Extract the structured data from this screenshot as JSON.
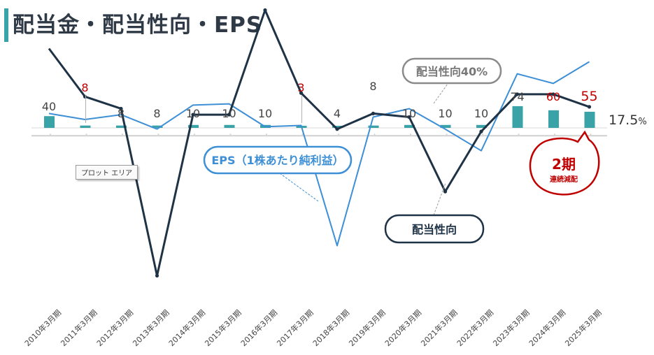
{
  "header": {
    "title": "配当金・配当性向・EPS"
  },
  "tooltip": "プロット エリア",
  "callouts": {
    "payout_ratio_ref": "配当性向40%",
    "eps": "EPS（1株あたり純利益）",
    "payout_ratio": "配当性向",
    "cut_count": "2期",
    "cut_label": "連続減配"
  },
  "colors": {
    "dividend_bar": "#3aa3a8",
    "eps_line": "#3d8fd6",
    "payout_line": "#1f3347",
    "reference_line": "#d0d0d0",
    "cut_highlight": "#c00000",
    "label_default": "#444444"
  },
  "chart_data": {
    "type": "bar",
    "categories": [
      "2010年3月期",
      "2011年3月期",
      "2012年3月期",
      "2013年3月期",
      "2014年3月期",
      "2015年3月期",
      "2016年3月期",
      "2017年3月期",
      "2018年3月期",
      "2019年3月期",
      "2020年3月期",
      "2021年3月期",
      "2022年3月期",
      "2023年3月期",
      "2024年3月期",
      "2025年3月期"
    ],
    "series": [
      {
        "name": "配当金",
        "kind": "bar",
        "values": [
          40,
          8,
          8,
          8,
          10,
          10,
          10,
          3,
          4,
          8,
          10,
          10,
          10,
          74,
          60,
          55
        ],
        "labels": [
          "40",
          "8",
          "8",
          "8",
          "10",
          "10",
          "10",
          "3",
          "4",
          "8",
          "10",
          "10",
          "10",
          "74",
          "60",
          "55"
        ],
        "highlight": [
          false,
          true,
          false,
          false,
          false,
          false,
          false,
          true,
          false,
          false,
          false,
          false,
          false,
          false,
          true,
          true
        ]
      },
      {
        "name": "EPS（1株あたり純利益）",
        "kind": "line",
        "values": [
          12,
          7,
          11,
          -1,
          19,
          20,
          1,
          2,
          -98,
          9,
          16,
          -1,
          -19,
          45,
          37,
          55
        ]
      },
      {
        "name": "配当性向",
        "kind": "line",
        "values": [
          66,
          26,
          16,
          -123,
          11,
          11,
          98,
          29,
          -1,
          12,
          9,
          -53,
          -3,
          28,
          28,
          17.5
        ]
      }
    ],
    "reference_line": {
      "label": "配当性向40%",
      "value": 40
    },
    "last_value_label": "17.5",
    "last_value_unit": "%",
    "ylim": [
      -130,
      100
    ],
    "grid": false,
    "legend": "none"
  }
}
